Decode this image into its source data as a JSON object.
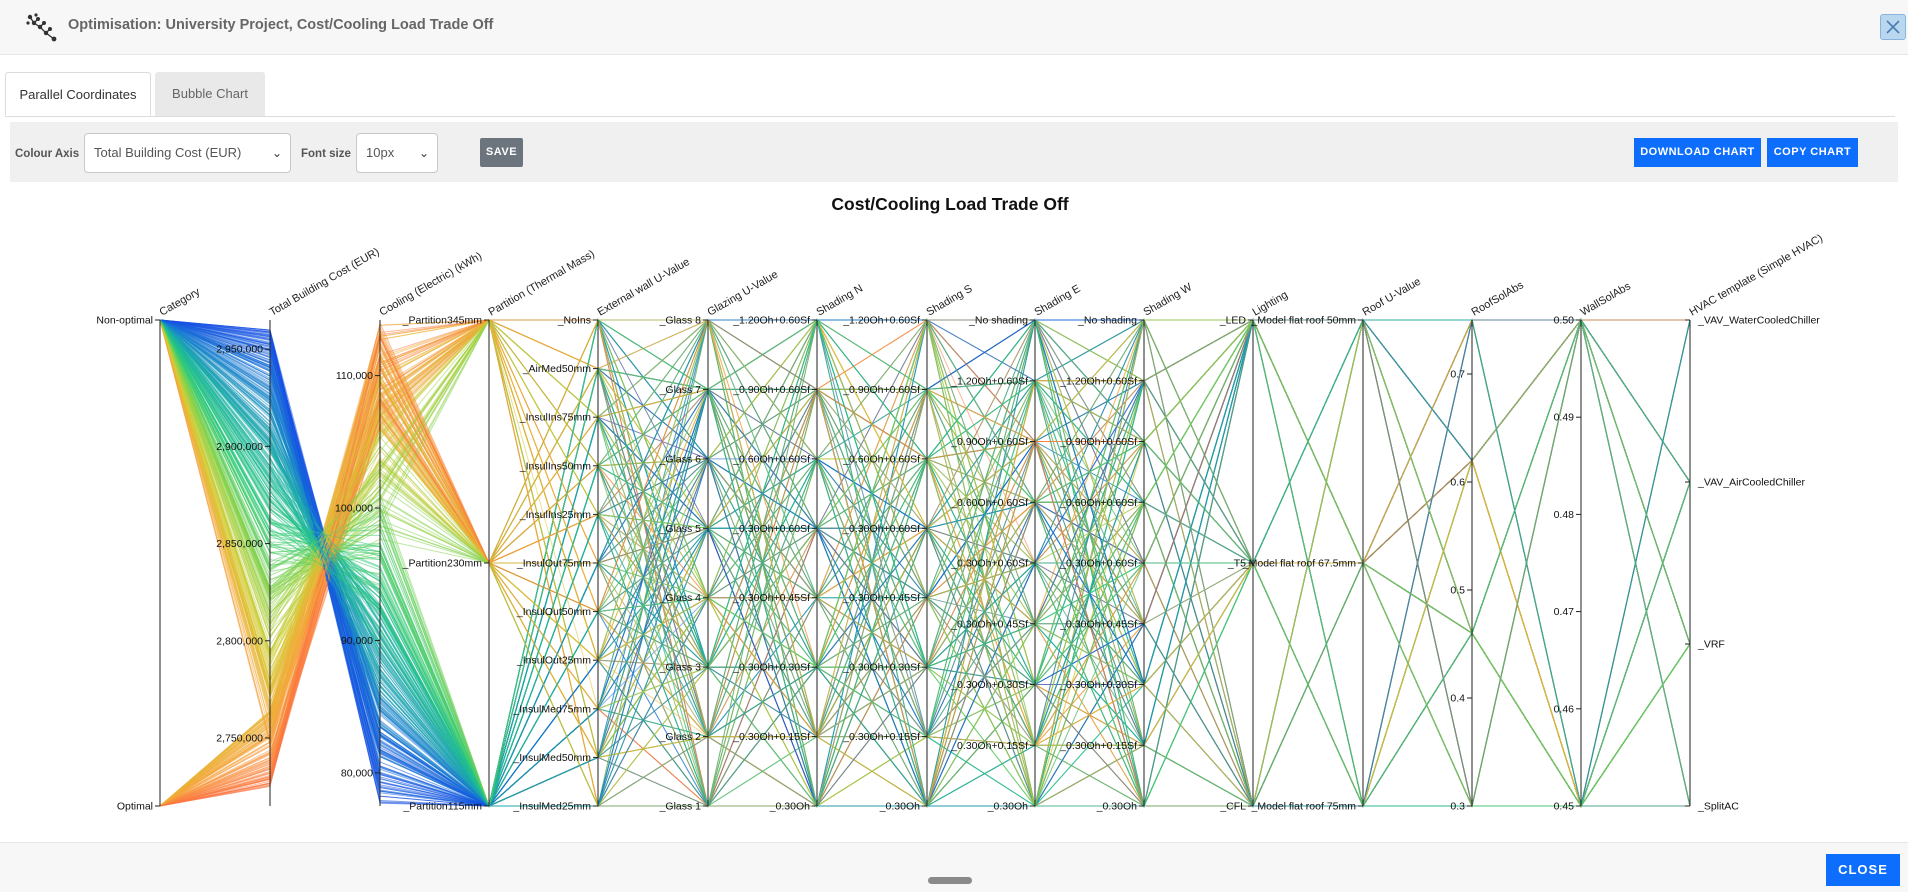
{
  "window": {
    "title": "Optimisation: University Project, Cost/Cooling Load Trade Off",
    "close_icon": "close-icon",
    "logo_icon": "network-nodes-icon"
  },
  "tabs": [
    {
      "label": "Parallel Coordinates",
      "active": true
    },
    {
      "label": "Bubble Chart",
      "active": false
    }
  ],
  "toolbar": {
    "colour_axis_label": "Colour Axis",
    "colour_axis_value": "Total Building Cost (EUR)",
    "font_size_label": "Font size",
    "font_size_value": "10px",
    "save_label": "SAVE",
    "download_label": "DOWNLOAD CHART",
    "copy_label": "COPY CHART"
  },
  "colors": {
    "accent": "#0d6efd",
    "save": "#6c757d",
    "line_palette": [
      "#ff5f45",
      "#f5a63a",
      "#d6cc36",
      "#8bd34a",
      "#2fca7a",
      "#1bb3a3",
      "#1a7fd0",
      "#1446e8"
    ]
  },
  "chart_data": {
    "type": "parallel_coordinates",
    "title": "Cost/Cooling Load Trade Off",
    "colour_axis": "Total Building Cost (EUR)",
    "axes": [
      {
        "name": "Category",
        "kind": "categorical",
        "ticks": [
          "Non-optimal",
          "Optimal"
        ]
      },
      {
        "name": "Total Building Cost (EUR)",
        "kind": "numeric",
        "range": [
          2715000,
          2965000
        ],
        "ticks": [
          "2,750,000",
          "2,800,000",
          "2,850,000",
          "2,900,000",
          "2,950,000"
        ]
      },
      {
        "name": "Cooling (Electric) (kWh)",
        "kind": "numeric",
        "range": [
          77500,
          114200
        ],
        "ticks": [
          "80,000",
          "90,000",
          "100,000",
          "110,000"
        ]
      },
      {
        "name": "Partition (Thermal Mass)",
        "kind": "categorical",
        "ticks": [
          "_Partition115mm",
          "_Partition230mm",
          "_Partition345mm"
        ]
      },
      {
        "name": "External wall U-Value",
        "kind": "categorical",
        "ticks": [
          "_InsulMed25mm",
          "_InsulMed50mm",
          "_InsulMed75mm",
          "_InsulOut25mm",
          "_InsulOut50mm",
          "_InsulOut75mm",
          "_InsulIns25mm",
          "_InsulIns50mm",
          "_InsulIns75mm",
          "_AirMed50mm",
          "_NoIns"
        ]
      },
      {
        "name": "Glazing U-Value",
        "kind": "categorical",
        "ticks": [
          "_Glass 1",
          "_Glass 2",
          "_Glass 3",
          "_Glass 4",
          "_Glass 5",
          "_Glass 6",
          "_Glass 7",
          "_Glass 8"
        ]
      },
      {
        "name": "Shading N",
        "kind": "categorical",
        "ticks": [
          "_0.30Oh",
          "_0.30Oh+0.15Sf",
          "_0.30Oh+0.30Sf",
          "_0.30Oh+0.45Sf",
          "_0.30Oh+0.60Sf",
          "_0.60Oh+0.60Sf",
          "_0.90Oh+0.60Sf",
          "_1.20Oh+0.60Sf"
        ]
      },
      {
        "name": "Shading S",
        "kind": "categorical",
        "ticks": [
          "_0.30Oh",
          "_0.30Oh+0.15Sf",
          "_0.30Oh+0.30Sf",
          "_0.30Oh+0.45Sf",
          "_0.30Oh+0.60Sf",
          "_0.60Oh+0.60Sf",
          "_0.90Oh+0.60Sf",
          "_1.20Oh+0.60Sf"
        ]
      },
      {
        "name": "Shading E",
        "kind": "categorical",
        "ticks": [
          "_0.30Oh",
          "_0.30Oh+0.15Sf",
          "_0.30Oh+0.30Sf",
          "_0.30Oh+0.45Sf",
          "_0.30Oh+0.60Sf",
          "_0.60Oh+0.60Sf",
          "_0.90Oh+0.60Sf",
          "_1.20Oh+0.60Sf",
          "_No shading"
        ]
      },
      {
        "name": "Shading W",
        "kind": "categorical",
        "ticks": [
          "_0.30Oh",
          "_0.30Oh+0.15Sf",
          "_0.30Oh+0.30Sf",
          "_0.30Oh+0.45Sf",
          "_0.30Oh+0.60Sf",
          "_0.60Oh+0.60Sf",
          "_0.90Oh+0.60Sf",
          "_1.20Oh+0.60Sf",
          "_No shading"
        ]
      },
      {
        "name": "Lighting",
        "kind": "categorical",
        "ticks": [
          "_CFL",
          "_T5",
          "_LED"
        ]
      },
      {
        "name": "Roof U-Value",
        "kind": "categorical",
        "ticks": [
          "_Model flat roof 75mm",
          "_Model flat roof 67.5mm",
          "_Model flat roof 50mm"
        ]
      },
      {
        "name": "RoofSolAbs",
        "kind": "numeric",
        "range": [
          0.3,
          0.75
        ],
        "ticks": [
          "0.3",
          "0.4",
          "0.5",
          "0.6",
          "0.7"
        ]
      },
      {
        "name": "WallSolAbs",
        "kind": "numeric",
        "range": [
          0.45,
          0.5
        ],
        "ticks": [
          "0.45",
          "0.46",
          "0.47",
          "0.48",
          "0.49",
          "0.50"
        ]
      },
      {
        "name": "HVAC template (Simple HVAC)",
        "kind": "categorical",
        "ticks": [
          "_SplitAC",
          "_VRF",
          "_VAV_AirCooledChiller",
          "_VAV_WaterCooledChiller"
        ]
      }
    ]
  },
  "footer": {
    "close_label": "CLOSE"
  }
}
